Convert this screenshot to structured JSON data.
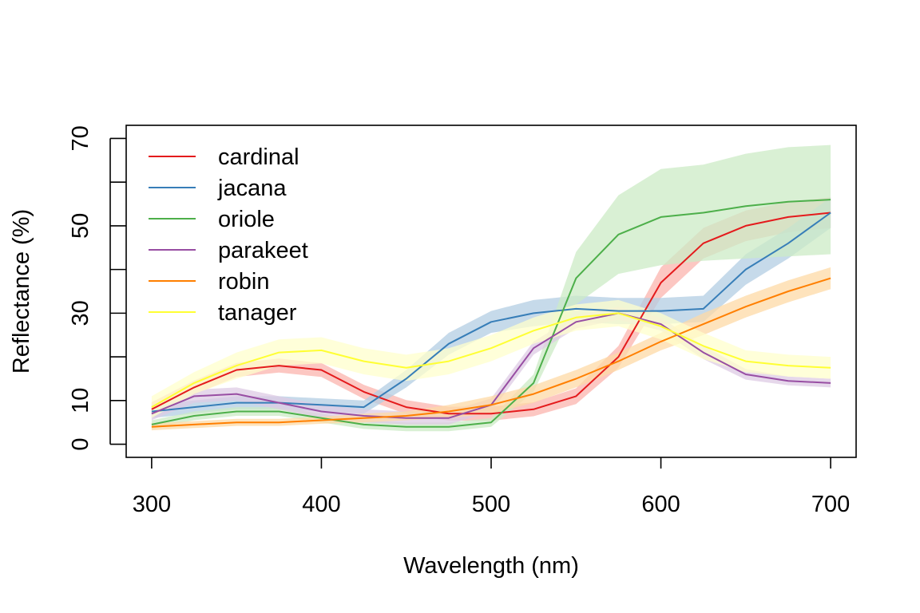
{
  "chart_data": {
    "type": "line",
    "title": "",
    "xlabel": "Wavelength (nm)",
    "ylabel": "Reflectance (%)",
    "xlim": [
      285,
      715
    ],
    "ylim": [
      -3,
      73
    ],
    "x_ticks": [
      300,
      400,
      500,
      600,
      700
    ],
    "x_tick_labels": [
      "300",
      "400",
      "500",
      "600",
      "700"
    ],
    "y_ticks": [
      0,
      10,
      20,
      30,
      40,
      50,
      60,
      70
    ],
    "y_tick_labels": [
      "0",
      "10",
      "",
      "30",
      "",
      "50",
      "",
      "70"
    ],
    "grid": false,
    "legend_position": "top-left",
    "x": [
      300,
      325,
      350,
      375,
      400,
      425,
      450,
      475,
      500,
      525,
      550,
      575,
      600,
      625,
      650,
      675,
      700
    ],
    "series": [
      {
        "name": "cardinal",
        "color": "#E41A1C",
        "band_color": "#FBB4AE",
        "values": [
          8,
          13,
          17,
          18,
          17,
          12,
          8.5,
          7,
          7,
          8,
          11,
          20,
          37,
          46,
          50,
          52,
          53
        ],
        "band": [
          1.6,
          1.6,
          1.6,
          1.6,
          1.6,
          1.6,
          1.6,
          1.6,
          1.6,
          1.6,
          1.8,
          2.5,
          3.5,
          3.5,
          3.5,
          3.5,
          3.5
        ]
      },
      {
        "name": "jacana",
        "color": "#377EB8",
        "band_color": "#B3CDE3",
        "values": [
          7.5,
          8.5,
          9.5,
          9.5,
          9,
          8.5,
          15,
          23,
          28,
          30,
          31,
          30.5,
          30.5,
          31,
          40,
          46,
          53
        ],
        "band": [
          1.5,
          1.5,
          1.5,
          1.5,
          1.5,
          1.5,
          2,
          2.5,
          2.5,
          3,
          3,
          3,
          3,
          3,
          3.5,
          3.5,
          3.5
        ]
      },
      {
        "name": "oriole",
        "color": "#4DAF4A",
        "band_color": "#CCEBC5",
        "values": [
          4.5,
          6.5,
          7.5,
          7.5,
          6,
          4.5,
          4,
          4,
          5,
          14,
          38,
          48,
          52,
          53,
          54.5,
          55.5,
          56
        ],
        "band": [
          1,
          1,
          1,
          1,
          1,
          1,
          1,
          1,
          1,
          2,
          6,
          9,
          11,
          11,
          12,
          12.5,
          12.5
        ]
      },
      {
        "name": "parakeet",
        "color": "#984EA3",
        "band_color": "#DECBE4",
        "values": [
          7,
          11,
          11.5,
          9.5,
          7.5,
          6.5,
          6,
          6,
          9,
          22,
          28,
          30,
          27.5,
          21,
          16,
          14.5,
          14
        ],
        "band": [
          1.5,
          1.5,
          1.5,
          1.5,
          1.5,
          1.5,
          1.5,
          1.5,
          1.5,
          1.5,
          1.5,
          1.5,
          1.5,
          1.5,
          1.2,
          1,
          1
        ]
      },
      {
        "name": "robin",
        "color": "#FF7F00",
        "band_color": "#FED9A6",
        "values": [
          4,
          4.5,
          5,
          5,
          5.5,
          6,
          6.5,
          7.5,
          9,
          11.5,
          15,
          19,
          23.5,
          27.5,
          31.5,
          35,
          38
        ],
        "band": [
          0.8,
          0.8,
          0.8,
          0.8,
          0.8,
          1,
          1,
          1.5,
          2,
          2,
          2,
          2,
          2,
          2.5,
          2.5,
          2.5,
          2.5
        ]
      },
      {
        "name": "tanager",
        "color": "#FFFF33",
        "band_color": "#FFFFCC",
        "values": [
          8.5,
          14,
          18,
          21,
          21.5,
          19,
          17.5,
          19,
          22,
          26,
          29,
          30,
          27,
          22.5,
          19,
          18,
          17.5
        ],
        "band": [
          2.5,
          2.5,
          3,
          3,
          3,
          3,
          3,
          3,
          3,
          3,
          3,
          3,
          3,
          3,
          2.5,
          2.5,
          2.5
        ]
      }
    ]
  }
}
